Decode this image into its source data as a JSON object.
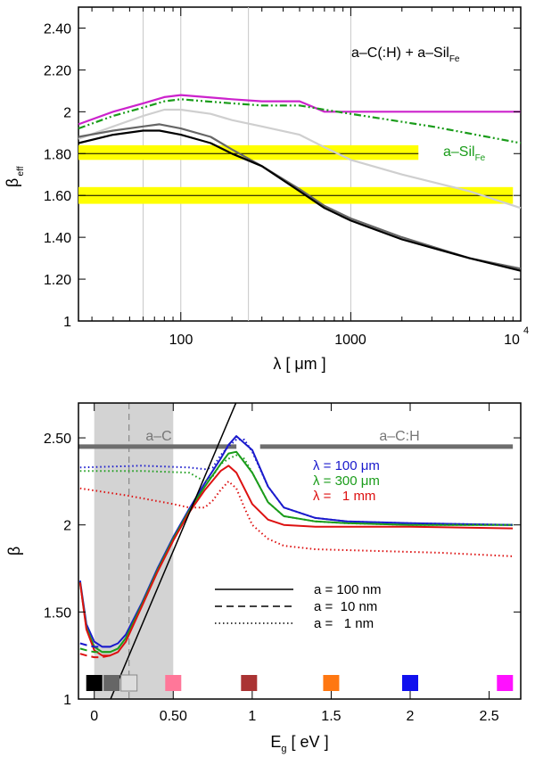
{
  "chart_data": [
    {
      "type": "line",
      "panel": "top",
      "xscale": "log",
      "xlim": [
        25,
        10000
      ],
      "ylim": [
        1,
        2.5
      ],
      "xlabel": "λ [ μm ]",
      "ylabel": "β",
      "ylabel_sub": "eff",
      "xtick_labels": [
        "100",
        "1000",
        "10",
        "4"
      ],
      "ytick_labels": [
        "1",
        "1.20",
        "1.40",
        "1.60",
        "1.80",
        "2",
        "2.20",
        "2.40"
      ],
      "yticks": [
        1,
        1.2,
        1.4,
        1.6,
        1.8,
        2.0,
        2.2,
        2.4
      ],
      "vlines": [
        60,
        100,
        250,
        1000
      ],
      "bands": [
        {
          "center": 1.8,
          "low": 1.77,
          "high": 1.84,
          "x_range": [
            25,
            2500
          ],
          "color": "#ffff00"
        },
        {
          "center": 1.6,
          "low": 1.56,
          "high": 1.64,
          "x_range": [
            25,
            9000
          ],
          "color": "#ffff00"
        }
      ],
      "annotation_main": "a–C(:H) + a–Sil",
      "annotation_main_sub": "Fe",
      "annotation_green": "a–Sil",
      "annotation_green_sub": "Fe",
      "series": [
        {
          "name": "magenta",
          "color": "#cc22cc",
          "style": "solid",
          "x": [
            25,
            40,
            60,
            80,
            100,
            140,
            200,
            300,
            500,
            700,
            1000,
            3000,
            10000
          ],
          "y": [
            1.94,
            2.0,
            2.04,
            2.07,
            2.08,
            2.07,
            2.06,
            2.05,
            2.05,
            2.0,
            2.0,
            2.0,
            2.0
          ]
        },
        {
          "name": "green",
          "color": "#1a9c1a",
          "style": "dashdotdot",
          "x": [
            25,
            40,
            60,
            80,
            100,
            140,
            200,
            300,
            500,
            700,
            1000,
            3000,
            10000
          ],
          "y": [
            1.92,
            1.98,
            2.02,
            2.05,
            2.06,
            2.05,
            2.04,
            2.03,
            2.03,
            2.01,
            1.99,
            1.93,
            1.85
          ]
        },
        {
          "name": "lightgrey",
          "color": "#cfcfcf",
          "style": "solid",
          "x": [
            25,
            40,
            60,
            80,
            100,
            150,
            200,
            300,
            500,
            700,
            1000,
            2000,
            5000,
            10000
          ],
          "y": [
            1.87,
            1.93,
            1.98,
            2.01,
            2.01,
            1.99,
            1.96,
            1.93,
            1.89,
            1.83,
            1.77,
            1.7,
            1.62,
            1.54
          ]
        },
        {
          "name": "darkgrey",
          "color": "#666666",
          "style": "solid",
          "x": [
            25,
            40,
            60,
            75,
            100,
            150,
            200,
            300,
            500,
            700,
            1000,
            2000,
            5000,
            10000
          ],
          "y": [
            1.88,
            1.91,
            1.93,
            1.94,
            1.92,
            1.88,
            1.82,
            1.74,
            1.63,
            1.55,
            1.49,
            1.4,
            1.3,
            1.25
          ]
        },
        {
          "name": "black",
          "color": "#000000",
          "style": "solid",
          "x": [
            25,
            40,
            60,
            75,
            100,
            150,
            200,
            300,
            500,
            700,
            1000,
            2000,
            5000,
            10000
          ],
          "y": [
            1.85,
            1.89,
            1.91,
            1.91,
            1.89,
            1.85,
            1.8,
            1.74,
            1.62,
            1.54,
            1.48,
            1.39,
            1.3,
            1.24
          ]
        }
      ]
    },
    {
      "type": "line",
      "panel": "bottom",
      "xlim": [
        -0.1,
        2.7
      ],
      "ylim": [
        1,
        2.7
      ],
      "xlabel": "E",
      "xlabel_sub": "g",
      "xlabel_unit": " [ eV ]",
      "ylabel": "β",
      "xticks": [
        0,
        0.5,
        1,
        1.5,
        2,
        2.5
      ],
      "xtick_labels": [
        "0",
        "0.50",
        "1",
        "1.5",
        "2",
        "2.5"
      ],
      "yticks": [
        1,
        1.5,
        2,
        2.5
      ],
      "ytick_labels": [
        "1",
        "1.50",
        "2",
        "2.50"
      ],
      "shade": {
        "x_range": [
          0,
          0.5
        ],
        "color": "#d3d3d3"
      },
      "dashed_vline": 0.22,
      "phase_bars": [
        {
          "label": "a–C",
          "x_range": [
            -0.1,
            0.9
          ],
          "y": 2.45
        },
        {
          "label": "a–C:H",
          "x_range": [
            1.05,
            2.65
          ],
          "y": 2.45
        }
      ],
      "diagonal": {
        "x": [
          0.08,
          0.92
        ],
        "y": [
          0.95,
          2.75
        ]
      },
      "lambda_legend": [
        {
          "label": "λ = 100 μm",
          "color": "#1a1acc"
        },
        {
          "label": "λ = 300 μm",
          "color": "#1a9c1a"
        },
        {
          "label": "λ =   1 mm",
          "color": "#dd1111"
        }
      ],
      "size_legend": [
        {
          "label": "a = 100 nm",
          "style": "solid"
        },
        {
          "label": "a =  10 nm",
          "style": "dashed"
        },
        {
          "label": "a =   1 nm",
          "style": "dotted"
        }
      ],
      "color_squares": [
        {
          "x": 0.0,
          "color": "#000000"
        },
        {
          "x": 0.11,
          "color": "#666666"
        },
        {
          "x": 0.22,
          "color": "#dddddd"
        },
        {
          "x": 0.5,
          "color": "#ff7799"
        },
        {
          "x": 0.98,
          "color": "#aa3333"
        },
        {
          "x": 1.5,
          "color": "#ff7711"
        },
        {
          "x": 2.0,
          "color": "#1111ee"
        },
        {
          "x": 2.6,
          "color": "#ff11ff"
        }
      ],
      "series": [
        {
          "name": "blue solid",
          "color": "#1a1acc",
          "style": "solid",
          "x": [
            -0.09,
            -0.05,
            0,
            0.05,
            0.1,
            0.15,
            0.2,
            0.3,
            0.4,
            0.5,
            0.6,
            0.7,
            0.8,
            0.85,
            0.9,
            1.0,
            1.1,
            1.2,
            1.4,
            1.6,
            2.0,
            2.65
          ],
          "y": [
            1.68,
            1.43,
            1.33,
            1.3,
            1.3,
            1.32,
            1.37,
            1.55,
            1.75,
            1.93,
            2.09,
            2.24,
            2.38,
            2.46,
            2.51,
            2.43,
            2.22,
            2.1,
            2.04,
            2.02,
            2.01,
            2.0
          ]
        },
        {
          "name": "green solid",
          "color": "#1a9c1a",
          "style": "solid",
          "x": [
            -0.09,
            -0.05,
            0,
            0.05,
            0.1,
            0.15,
            0.2,
            0.3,
            0.4,
            0.5,
            0.6,
            0.7,
            0.8,
            0.85,
            0.9,
            1.0,
            1.1,
            1.2,
            1.4,
            1.6,
            2.0,
            2.65
          ],
          "y": [
            1.67,
            1.41,
            1.3,
            1.27,
            1.27,
            1.29,
            1.35,
            1.54,
            1.74,
            1.92,
            2.08,
            2.22,
            2.35,
            2.41,
            2.42,
            2.3,
            2.13,
            2.05,
            2.02,
            2.01,
            2.0,
            2.0
          ]
        },
        {
          "name": "red solid",
          "color": "#dd1111",
          "style": "solid",
          "x": [
            -0.09,
            -0.05,
            0,
            0.05,
            0.1,
            0.15,
            0.2,
            0.3,
            0.4,
            0.5,
            0.6,
            0.7,
            0.8,
            0.85,
            0.9,
            1.0,
            1.1,
            1.2,
            1.4,
            1.6,
            2.0,
            2.65
          ],
          "y": [
            1.67,
            1.4,
            1.28,
            1.25,
            1.25,
            1.27,
            1.33,
            1.53,
            1.73,
            1.91,
            2.07,
            2.2,
            2.31,
            2.34,
            2.3,
            2.12,
            2.03,
            2.0,
            1.99,
            1.99,
            1.99,
            1.98
          ]
        },
        {
          "name": "blue dotted",
          "color": "#1a1acc",
          "style": "dotted",
          "x": [
            -0.09,
            0.3,
            0.6,
            0.7,
            0.75,
            0.8,
            0.85,
            0.9,
            0.95,
            1.0,
            1.1,
            1.2,
            1.4,
            1.6,
            2.0,
            2.65
          ],
          "y": [
            2.33,
            2.34,
            2.33,
            2.32,
            2.33,
            2.4,
            2.45,
            2.49,
            2.49,
            2.42,
            2.22,
            2.1,
            2.04,
            2.02,
            2.01,
            2.0
          ]
        },
        {
          "name": "green dotted",
          "color": "#1a9c1a",
          "style": "dotted",
          "x": [
            -0.09,
            0.3,
            0.6,
            0.7,
            0.75,
            0.8,
            0.85,
            0.9,
            0.95,
            1.0,
            1.1,
            1.2,
            1.4,
            1.6,
            2.0,
            2.65
          ],
          "y": [
            2.31,
            2.31,
            2.3,
            2.25,
            2.28,
            2.35,
            2.38,
            2.4,
            2.38,
            2.3,
            2.13,
            2.05,
            2.02,
            2.01,
            2.0,
            2.0
          ]
        },
        {
          "name": "red dotted",
          "color": "#dd1111",
          "style": "dotted",
          "x": [
            -0.09,
            0.2,
            0.5,
            0.6,
            0.7,
            0.75,
            0.8,
            0.85,
            0.9,
            0.95,
            1.0,
            1.1,
            1.2,
            1.4,
            1.8,
            2.2,
            2.65
          ],
          "y": [
            2.21,
            2.17,
            2.12,
            2.1,
            2.1,
            2.14,
            2.2,
            2.25,
            2.21,
            2.1,
            2.0,
            1.92,
            1.88,
            1.86,
            1.85,
            1.84,
            1.82
          ]
        },
        {
          "name": "blue dashed",
          "color": "#1a1acc",
          "style": "dashed",
          "x": [
            -0.09,
            -0.05,
            0,
            0.05,
            0.1
          ],
          "y": [
            1.32,
            1.31,
            1.3,
            1.3,
            1.3
          ]
        },
        {
          "name": "green dashed",
          "color": "#1a9c1a",
          "style": "dashed",
          "x": [
            -0.09,
            -0.05,
            0,
            0.05,
            0.1
          ],
          "y": [
            1.29,
            1.28,
            1.27,
            1.27,
            1.27
          ]
        },
        {
          "name": "red dashed",
          "color": "#dd1111",
          "style": "dashed",
          "x": [
            -0.09,
            -0.05,
            0,
            0.05,
            0.1
          ],
          "y": [
            1.26,
            1.25,
            1.24,
            1.24,
            1.25
          ]
        }
      ]
    }
  ]
}
